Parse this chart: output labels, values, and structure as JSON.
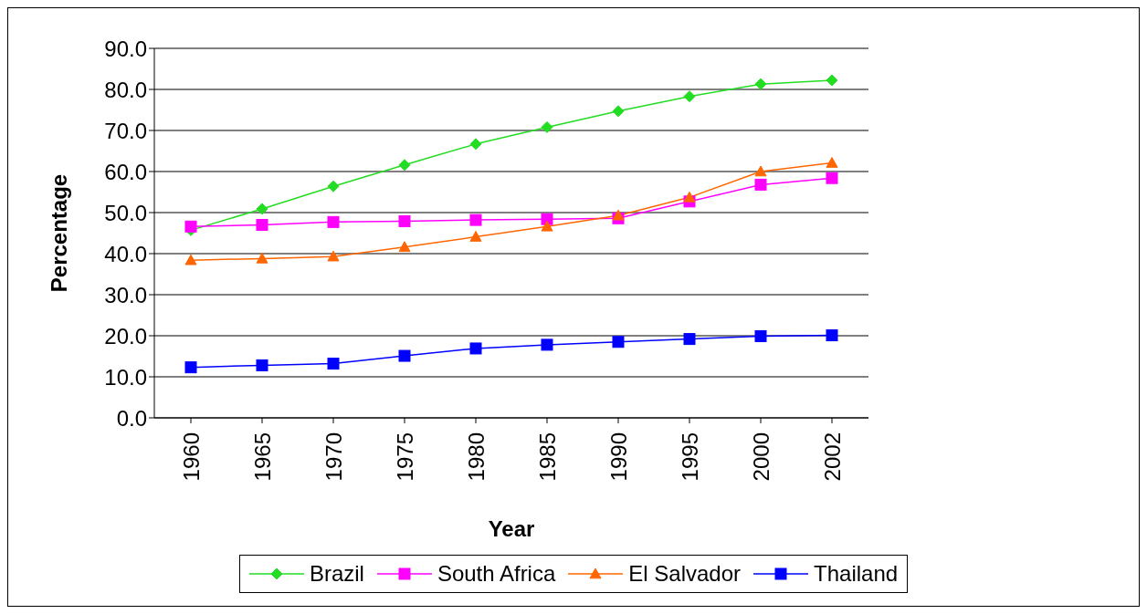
{
  "chart_data": {
    "type": "line",
    "xlabel": "Year",
    "ylabel": "Percentage",
    "categories": [
      "1960",
      "1965",
      "1970",
      "1975",
      "1980",
      "1985",
      "1990",
      "1995",
      "2000",
      "2002"
    ],
    "series": [
      {
        "name": "Brazil",
        "color": "#22dd22",
        "marker": "diamond",
        "values": [
          45.7,
          50.9,
          56.4,
          61.6,
          66.7,
          70.8,
          74.7,
          78.3,
          81.3,
          82.2
        ]
      },
      {
        "name": "South Africa",
        "color": "#ff00ff",
        "marker": "square",
        "values": [
          46.6,
          47.0,
          47.7,
          47.9,
          48.2,
          48.4,
          48.6,
          52.7,
          56.8,
          58.4
        ]
      },
      {
        "name": "El Salvador",
        "color": "#ff6600",
        "marker": "triangle",
        "values": [
          38.4,
          38.8,
          39.3,
          41.6,
          44.1,
          46.6,
          49.3,
          53.7,
          60.0,
          62.1
        ]
      },
      {
        "name": "Thailand",
        "color": "#0000ff",
        "marker": "square",
        "values": [
          12.3,
          12.8,
          13.2,
          15.1,
          16.9,
          17.8,
          18.5,
          19.2,
          19.9,
          20.1
        ]
      }
    ],
    "ylim": [
      0,
      90
    ],
    "yticks": [
      {
        "value": 0,
        "label": "0.0"
      },
      {
        "value": 10,
        "label": "10.0"
      },
      {
        "value": 20,
        "label": "20.0"
      },
      {
        "value": 30,
        "label": "30.0"
      },
      {
        "value": 40,
        "label": "40.0"
      },
      {
        "value": 50,
        "label": "50.0"
      },
      {
        "value": 60,
        "label": "60.0"
      },
      {
        "value": 70,
        "label": "70.0"
      },
      {
        "value": 80,
        "label": "80.0"
      },
      {
        "value": 90,
        "label": "90.0"
      }
    ],
    "grid": "y",
    "legend": "bottom"
  }
}
